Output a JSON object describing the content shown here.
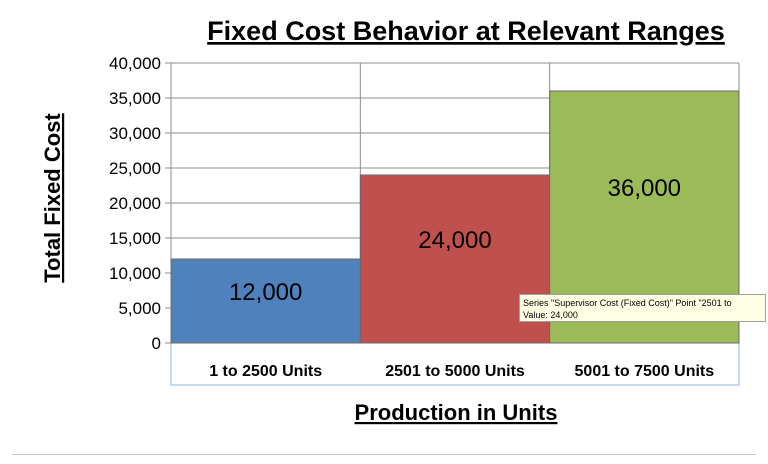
{
  "chart_data": {
    "type": "bar",
    "title": "Fixed Cost Behavior at Relevant Ranges",
    "xlabel": "Production in Units",
    "ylabel": "Total Fixed Cost",
    "categories": [
      "1 to 2500 Units",
      "2501 to 5000 Units",
      "5001 to 7500 Units"
    ],
    "values": [
      12000,
      24000,
      36000
    ],
    "data_labels": [
      "12,000",
      "24,000",
      "36,000"
    ],
    "bar_colors": [
      "#4f81bd",
      "#c0504d",
      "#9bbb59"
    ],
    "ylim": [
      0,
      40000
    ],
    "yticks": [
      0,
      5000,
      10000,
      15000,
      20000,
      25000,
      30000,
      35000,
      40000
    ],
    "ytick_labels": [
      "0",
      "5,000",
      "10,000",
      "15,000",
      "20,000",
      "25,000",
      "30,000",
      "35,000",
      "40,000"
    ],
    "grid": true,
    "legend": "none"
  },
  "tooltip": {
    "line1": "Series \"Supervisor Cost (Fixed Cost)\" Point \"2501 to",
    "line2": "Value: 24,000"
  }
}
